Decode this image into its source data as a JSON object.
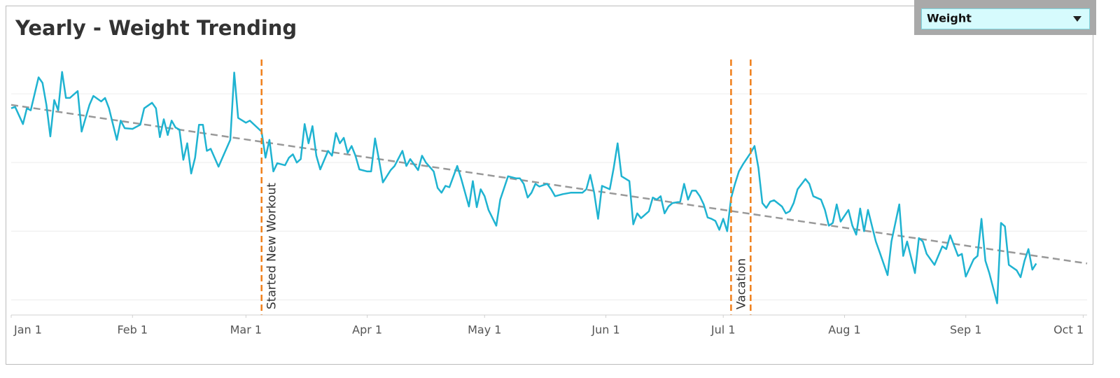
{
  "filter": {
    "selected": "Weight"
  },
  "chart_data": {
    "type": "line",
    "title": "Yearly - Weight Trending",
    "color": "#1fb3d1",
    "x": [
      0,
      1,
      3,
      4,
      5,
      7,
      8,
      9,
      10,
      11,
      12,
      13,
      14,
      15,
      17,
      18,
      20,
      21,
      23,
      24,
      25,
      27,
      28,
      29,
      31,
      33,
      34,
      36,
      37,
      38,
      39,
      40,
      41,
      42,
      43,
      44,
      45,
      46,
      47,
      48,
      49,
      50,
      51,
      53,
      54,
      56,
      57,
      58,
      60,
      61,
      64,
      65,
      66,
      67,
      68,
      70,
      71,
      72,
      73,
      74,
      75,
      76,
      77,
      78,
      79,
      81,
      82,
      83,
      84,
      85,
      86,
      87,
      88,
      89,
      91,
      92,
      93,
      94,
      95,
      97,
      98,
      100,
      101,
      102,
      104,
      105,
      106,
      108,
      109,
      110,
      111,
      112,
      114,
      115,
      117,
      118,
      119,
      120,
      121,
      122,
      124,
      125,
      127,
      129,
      130,
      131,
      132,
      133,
      134,
      135,
      137,
      138,
      139,
      141,
      143,
      146,
      147,
      148,
      149,
      150,
      151,
      153,
      154,
      155,
      156,
      158,
      159,
      160,
      161,
      163,
      164,
      165,
      166,
      167,
      168,
      169,
      171,
      172,
      173,
      174,
      175,
      176,
      177,
      178,
      179,
      180,
      181,
      182,
      183,
      184,
      185,
      186,
      187,
      189,
      190,
      191,
      192,
      193,
      194,
      195,
      197,
      198,
      199,
      200,
      201,
      203,
      204,
      205,
      207,
      208,
      209,
      210,
      211,
      212,
      214,
      215,
      216,
      217,
      218,
      219,
      221,
      222,
      224,
      225,
      227,
      228,
      229,
      231,
      232,
      233,
      234,
      236,
      238,
      239,
      240,
      242,
      243,
      244,
      246,
      247,
      248,
      249,
      250,
      252,
      253,
      254,
      255,
      257,
      258,
      259,
      260,
      261,
      262
    ],
    "values": [
      27.9,
      28.1,
      25.6,
      27.9,
      27.6,
      32.4,
      31.6,
      28.4,
      23.8,
      29.1,
      27.6,
      33.2,
      29.4,
      29.4,
      30.4,
      24.5,
      28.4,
      29.7,
      28.9,
      29.4,
      27.9,
      23.3,
      26.1,
      25.0,
      24.9,
      25.5,
      27.9,
      28.7,
      27.9,
      23.7,
      26.3,
      24.0,
      26.1,
      25.1,
      24.8,
      20.4,
      22.8,
      18.4,
      20.7,
      25.5,
      25.5,
      21.7,
      22.0,
      19.4,
      20.7,
      23.3,
      33.1,
      26.5,
      25.8,
      26.1,
      24.5,
      20.7,
      23.3,
      18.7,
      19.9,
      19.6,
      20.7,
      21.2,
      20.0,
      20.5,
      25.6,
      22.8,
      25.3,
      21.0,
      19.0,
      21.7,
      21.0,
      24.3,
      22.8,
      23.6,
      21.4,
      22.4,
      21.0,
      19.0,
      18.7,
      18.7,
      23.5,
      20.4,
      17.1,
      18.9,
      19.5,
      21.7,
      19.5,
      20.5,
      18.9,
      21.0,
      20.0,
      18.7,
      16.3,
      15.6,
      16.6,
      16.4,
      19.5,
      17.7,
      13.6,
      17.3,
      13.5,
      16.1,
      15.1,
      13.1,
      10.8,
      14.6,
      18.0,
      17.7,
      17.7,
      16.9,
      14.9,
      15.6,
      16.9,
      16.5,
      16.9,
      16.1,
      15.1,
      15.4,
      15.6,
      15.6,
      16.1,
      18.2,
      15.6,
      11.8,
      16.6,
      16.1,
      19.2,
      22.8,
      18.0,
      17.3,
      11.0,
      12.6,
      11.9,
      12.9,
      14.9,
      14.6,
      15.1,
      12.6,
      13.6,
      14.1,
      14.3,
      16.9,
      14.6,
      15.9,
      15.9,
      15.1,
      13.9,
      12.0,
      11.8,
      11.5,
      10.2,
      11.8,
      10.0,
      14.8,
      16.9,
      18.7,
      19.7,
      21.4,
      22.4,
      19.2,
      14.1,
      13.4,
      14.3,
      14.5,
      13.6,
      12.6,
      12.9,
      14.1,
      16.1,
      17.6,
      16.9,
      15.1,
      14.6,
      13.1,
      10.8,
      11.2,
      13.9,
      11.4,
      13.1,
      10.8,
      9.5,
      13.3,
      10.0,
      13.1,
      8.5,
      6.9,
      3.6,
      8.5,
      13.9,
      6.4,
      8.5,
      3.9,
      9.0,
      8.5,
      6.7,
      5.1,
      7.8,
      7.4,
      9.4,
      6.4,
      6.7,
      3.4,
      5.9,
      6.4,
      11.8,
      5.7,
      3.9,
      -0.5,
      11.2,
      10.7,
      5.1,
      4.3,
      3.3,
      5.7,
      7.4,
      4.4,
      5.3
    ],
    "trend": {
      "x": [
        0,
        275
      ],
      "values": [
        28.4,
        5.3
      ],
      "color": "#999999"
    },
    "reference_lines": [
      {
        "x": 64,
        "label": "Started New Workout"
      },
      {
        "x": 184,
        "label": "Vacation"
      },
      {
        "x": 189
      }
    ],
    "reference_color": "#f07f1a",
    "xlim": [
      0,
      275
    ],
    "xticks": [
      {
        "value": 0,
        "label": "Jan 1"
      },
      {
        "value": 31,
        "label": "Feb 1"
      },
      {
        "value": 60,
        "label": "Mar 1"
      },
      {
        "value": 91,
        "label": "Apr 1"
      },
      {
        "value": 121,
        "label": "May 1"
      },
      {
        "value": 152,
        "label": "Jun 1"
      },
      {
        "value": 182,
        "label": "Jul 1"
      },
      {
        "value": 213,
        "label": "Aug 1"
      },
      {
        "value": 244,
        "label": "Sep 1"
      },
      {
        "value": 274,
        "label": "Oct 1"
      }
    ],
    "ylim": [
      -2.2,
      35
    ],
    "yticks": [
      0,
      10,
      20,
      30
    ],
    "ytick_labels": false,
    "grid": true
  }
}
